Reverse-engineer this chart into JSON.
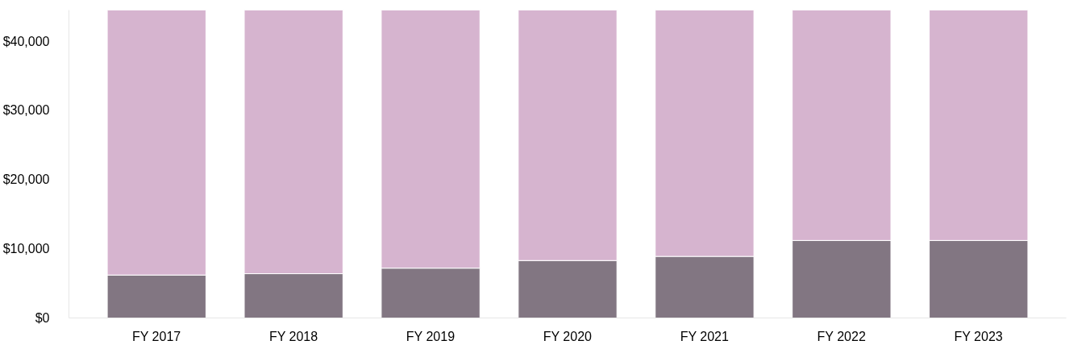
{
  "chart_data": {
    "type": "bar",
    "stacked": true,
    "categories": [
      "FY 2017",
      "FY 2018",
      "FY 2019",
      "FY 2020",
      "FY 2021",
      "FY 2022",
      "FY 2023"
    ],
    "series": [
      {
        "color": "#827682",
        "values": [
          6200,
          6400,
          7200,
          8300,
          8900,
          11200,
          11200
        ]
      },
      {
        "color": "#d6b4cf",
        "values": [
          38300,
          38100,
          37300,
          36200,
          35600,
          33300,
          33300
        ]
      }
    ],
    "ylim": [
      0,
      44500
    ],
    "yticks": [
      {
        "value": 0,
        "label": "$0"
      },
      {
        "value": 10000,
        "label": "$10,000"
      },
      {
        "value": 20000,
        "label": "$20,000"
      },
      {
        "value": 30000,
        "label": "$30,000"
      },
      {
        "value": 40000,
        "label": "$40,000"
      }
    ],
    "grid": false
  }
}
